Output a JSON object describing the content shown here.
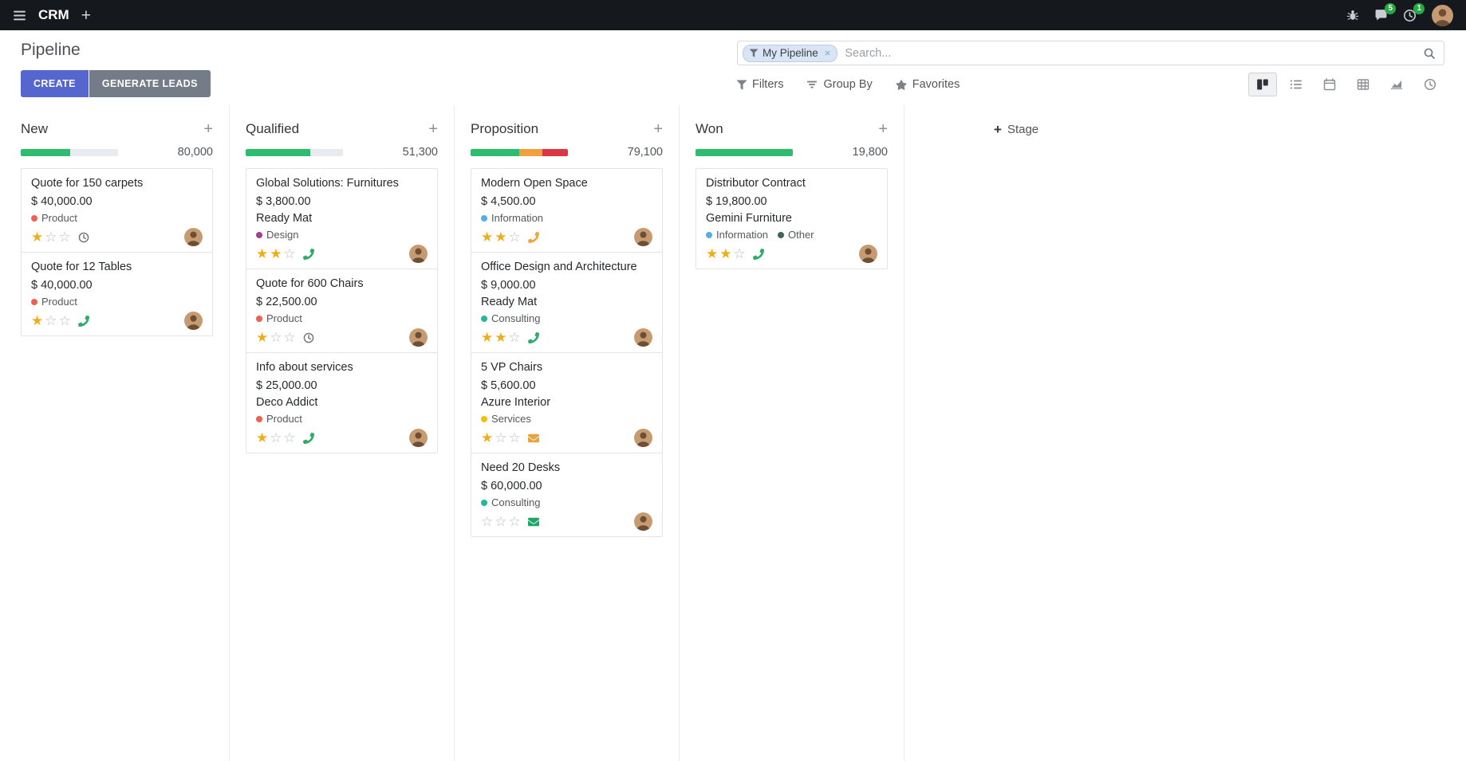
{
  "navbar": {
    "app_name": "CRM",
    "messages_badge": "5",
    "activities_badge": "1"
  },
  "control_panel": {
    "title": "Pipeline",
    "create_label": "CREATE",
    "generate_leads_label": "GENERATE LEADS",
    "filters_label": "Filters",
    "group_by_label": "Group By",
    "favorites_label": "Favorites",
    "active_view": "kanban",
    "add_stage_label": "Stage",
    "search": {
      "facet_label": "My Pipeline",
      "placeholder": "Search..."
    }
  },
  "board": {
    "columns": [
      {
        "name": "New",
        "counter": "80,000",
        "progress": [
          {
            "status": "success",
            "color": "#2ebd70",
            "pct": 51
          },
          {
            "status": "muted",
            "color": "#e9ecef",
            "pct": 49
          }
        ],
        "cards": [
          {
            "title": "Quote for 150 carpets",
            "amount": "$ 40,000.00",
            "partner": "",
            "tags": [
              {
                "label": "Product",
                "color": "#f06050"
              }
            ],
            "stars_filled": 1,
            "activity": {
              "icon": "clock",
              "color": "#6d7277"
            }
          },
          {
            "title": "Quote for 12 Tables",
            "amount": "$ 40,000.00",
            "partner": "",
            "tags": [
              {
                "label": "Product",
                "color": "#f06050"
              }
            ],
            "stars_filled": 1,
            "activity": {
              "icon": "phone",
              "color": "#2dab67"
            }
          }
        ]
      },
      {
        "name": "Qualified",
        "counter": "51,300",
        "progress": [
          {
            "status": "success",
            "color": "#2ebd70",
            "pct": 66
          },
          {
            "status": "muted",
            "color": "#e9ecef",
            "pct": 34
          }
        ],
        "cards": [
          {
            "title": "Global Solutions: Furnitures",
            "amount": "$ 3,800.00",
            "partner": "Ready Mat",
            "tags": [
              {
                "label": "Design",
                "color": "#a5408d"
              }
            ],
            "stars_filled": 2,
            "activity": {
              "icon": "phone",
              "color": "#2dab67"
            }
          },
          {
            "title": "Quote for 600 Chairs",
            "amount": "$ 22,500.00",
            "partner": "",
            "tags": [
              {
                "label": "Product",
                "color": "#f06050"
              }
            ],
            "stars_filled": 1,
            "activity": {
              "icon": "clock",
              "color": "#6d7277"
            }
          },
          {
            "title": "Info about services",
            "amount": "$ 25,000.00",
            "partner": "Deco Addict",
            "tags": [
              {
                "label": "Product",
                "color": "#f06050"
              }
            ],
            "stars_filled": 1,
            "activity": {
              "icon": "phone",
              "color": "#2dab67"
            }
          }
        ]
      },
      {
        "name": "Proposition",
        "counter": "79,100",
        "progress": [
          {
            "status": "success",
            "color": "#2ebd70",
            "pct": 50
          },
          {
            "status": "warning",
            "color": "#f0a03c",
            "pct": 24
          },
          {
            "status": "danger",
            "color": "#dc3545",
            "pct": 26
          }
        ],
        "cards": [
          {
            "title": "Modern Open Space",
            "amount": "$ 4,500.00",
            "partner": "",
            "tags": [
              {
                "label": "Information",
                "color": "#56aee8"
              }
            ],
            "stars_filled": 2,
            "activity": {
              "icon": "phone",
              "color": "#eda73c"
            }
          },
          {
            "title": "Office Design and Architecture",
            "amount": "$ 9,000.00",
            "partner": "Ready Mat",
            "tags": [
              {
                "label": "Consulting",
                "color": "#27b59c"
              }
            ],
            "stars_filled": 2,
            "activity": {
              "icon": "phone",
              "color": "#2dab67"
            }
          },
          {
            "title": "5 VP Chairs",
            "amount": "$ 5,600.00",
            "partner": "Azure Interior",
            "tags": [
              {
                "label": "Services",
                "color": "#ecc306"
              }
            ],
            "stars_filled": 1,
            "activity": {
              "icon": "envelope",
              "color": "#e8a33d"
            }
          },
          {
            "title": "Need 20 Desks",
            "amount": "$ 60,000.00",
            "partner": "",
            "tags": [
              {
                "label": "Consulting",
                "color": "#27b59c"
              }
            ],
            "stars_filled": 0,
            "activity": {
              "icon": "envelope",
              "color": "#21a567"
            }
          }
        ]
      },
      {
        "name": "Won",
        "counter": "19,800",
        "progress": [
          {
            "status": "success",
            "color": "#2ebd70",
            "pct": 100
          }
        ],
        "cards": [
          {
            "title": "Distributor Contract",
            "amount": "$ 19,800.00",
            "partner": "Gemini Furniture",
            "tags": [
              {
                "label": "Information",
                "color": "#56aee8"
              },
              {
                "label": "Other",
                "color": "#40655f"
              }
            ],
            "stars_filled": 2,
            "activity": {
              "icon": "phone",
              "color": "#2dab67"
            }
          }
        ]
      }
    ]
  }
}
